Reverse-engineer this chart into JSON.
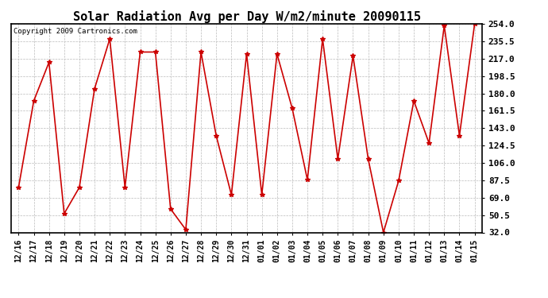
{
  "title": "Solar Radiation Avg per Day W/m2/minute 20090115",
  "copyright": "Copyright 2009 Cartronics.com",
  "dates": [
    "12/16",
    "12/17",
    "12/18",
    "12/19",
    "12/20",
    "12/21",
    "12/22",
    "12/23",
    "12/24",
    "12/25",
    "12/26",
    "12/27",
    "12/28",
    "12/29",
    "12/30",
    "12/31",
    "01/01",
    "01/02",
    "01/03",
    "01/04",
    "01/05",
    "01/06",
    "01/07",
    "01/08",
    "01/09",
    "01/10",
    "01/11",
    "01/12",
    "01/13",
    "01/14",
    "01/15"
  ],
  "values": [
    80,
    172,
    213,
    52,
    80,
    185,
    238,
    80,
    224,
    224,
    57,
    35,
    224,
    135,
    72,
    222,
    72,
    222,
    164,
    88,
    238,
    110,
    220,
    110,
    32,
    87,
    172,
    127,
    252,
    135,
    254
  ],
  "line_color": "#cc0000",
  "marker": "*",
  "marker_size": 4,
  "grid_color": "#bbbbbb",
  "grid_style": "--",
  "background_color": "#ffffff",
  "ylim": [
    32.0,
    254.0
  ],
  "yticks": [
    32.0,
    50.5,
    69.0,
    87.5,
    106.0,
    124.5,
    143.0,
    161.5,
    180.0,
    198.5,
    217.0,
    235.5,
    254.0
  ],
  "title_fontsize": 11,
  "tick_fontsize": 7,
  "copyright_fontsize": 6.5,
  "ytick_fontsize": 8
}
